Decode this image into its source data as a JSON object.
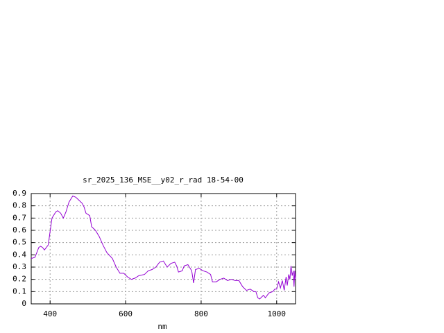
{
  "chart_data": {
    "type": "line",
    "title": "sr_2025_136_MSE__y02_r_rad 18-54-00",
    "x_label": "nm",
    "x": [
      350,
      360,
      370,
      375,
      380,
      385,
      395,
      405,
      415,
      420,
      428,
      435,
      442,
      450,
      460,
      468,
      475,
      485,
      490,
      495,
      505,
      510,
      520,
      530,
      540,
      550,
      565,
      575,
      585,
      595,
      605,
      615,
      625,
      635,
      650,
      660,
      670,
      680,
      690,
      700,
      710,
      720,
      730,
      735,
      740,
      750,
      755,
      765,
      775,
      780,
      785,
      795,
      805,
      815,
      825,
      830,
      840,
      850,
      860,
      870,
      880,
      890,
      900,
      910,
      920,
      930,
      940,
      945,
      950,
      955,
      965,
      970,
      980,
      990,
      995,
      1000,
      1005,
      1010,
      1015,
      1020,
      1025,
      1028,
      1032,
      1035,
      1038,
      1041,
      1044,
      1046,
      1048,
      1050
    ],
    "series": [
      {
        "color": "#9400d3",
        "values": [
          0.37,
          0.38,
          0.46,
          0.47,
          0.46,
          0.44,
          0.48,
          0.7,
          0.75,
          0.76,
          0.74,
          0.7,
          0.75,
          0.83,
          0.88,
          0.87,
          0.85,
          0.82,
          0.79,
          0.74,
          0.72,
          0.63,
          0.6,
          0.55,
          0.48,
          0.42,
          0.37,
          0.3,
          0.25,
          0.25,
          0.22,
          0.2,
          0.21,
          0.23,
          0.24,
          0.27,
          0.28,
          0.3,
          0.34,
          0.35,
          0.3,
          0.33,
          0.34,
          0.31,
          0.26,
          0.27,
          0.31,
          0.32,
          0.27,
          0.17,
          0.28,
          0.29,
          0.27,
          0.26,
          0.24,
          0.18,
          0.18,
          0.2,
          0.21,
          0.19,
          0.2,
          0.19,
          0.19,
          0.14,
          0.11,
          0.12,
          0.1,
          0.1,
          0.05,
          0.04,
          0.07,
          0.05,
          0.09,
          0.1,
          0.12,
          0.12,
          0.18,
          0.13,
          0.19,
          0.11,
          0.22,
          0.15,
          0.24,
          0.2,
          0.31,
          0.23,
          0.27,
          0.14,
          0.27,
          0.2
        ]
      }
    ],
    "xlim": [
      350,
      1050
    ],
    "ylim": [
      0,
      0.9
    ],
    "xticks": [
      400,
      600,
      800,
      1000
    ],
    "yticks": [
      0,
      0.1,
      0.2,
      0.3,
      0.4,
      0.5,
      0.6,
      0.7,
      0.8,
      0.9
    ],
    "grid": true
  }
}
